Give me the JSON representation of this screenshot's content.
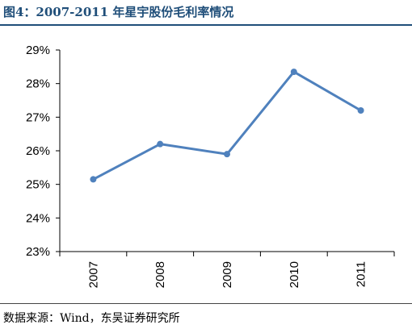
{
  "header": {
    "title": "图4：2007-2011 年星宇股份毛利率情况"
  },
  "footer": {
    "source": "数据来源：Wind，东吴证券研究所"
  },
  "colors": {
    "title": "#1f4e79",
    "series": "#4f81bd",
    "axis": "#000000"
  },
  "chart_data": {
    "type": "line",
    "title": "",
    "xlabel": "",
    "ylabel": "",
    "categories": [
      "2007",
      "2008",
      "2009",
      "2010",
      "2011"
    ],
    "series": [
      {
        "values": [
          25.15,
          26.2,
          25.9,
          28.35,
          27.2
        ]
      }
    ],
    "ylim": [
      23,
      29
    ],
    "yticks": [
      23,
      24,
      25,
      26,
      27,
      28,
      29
    ],
    "ytick_labels": [
      "23%",
      "24%",
      "25%",
      "26%",
      "27%",
      "28%",
      "29%"
    ],
    "grid": false,
    "legend": "none"
  }
}
